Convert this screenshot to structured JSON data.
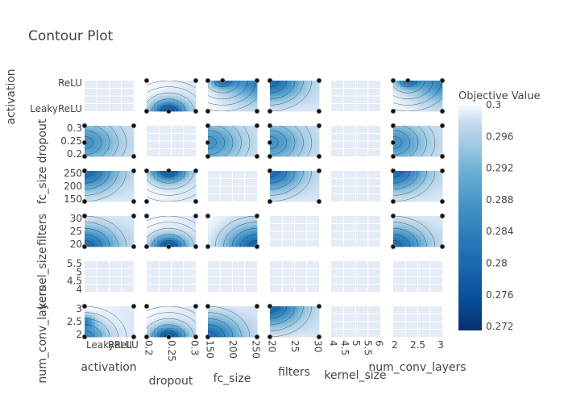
{
  "chart_data": {
    "type": "contour",
    "title": "Contour Plot",
    "params": [
      {
        "name": "activation",
        "ticks": [
          "LeakyReLU",
          "ReLU"
        ]
      },
      {
        "name": "dropout",
        "ticks": [
          "0.2",
          "0.25",
          "0.3"
        ]
      },
      {
        "name": "fc_size",
        "ticks": [
          "150",
          "200",
          "250"
        ],
        "y_ticks": [
          "150",
          "200",
          "250"
        ]
      },
      {
        "name": "filters",
        "ticks": [
          "20",
          "25",
          "30"
        ],
        "y_ticks": [
          "20",
          "25",
          "30"
        ]
      },
      {
        "name": "kernel_size",
        "ticks": [
          "4",
          "4.5",
          "5",
          "5.5",
          "6"
        ],
        "y_ticks": [
          "4",
          "4.5",
          "5",
          "5.5"
        ]
      },
      {
        "name": "num_conv_layers",
        "ticks": [
          "2",
          "2.5",
          "3"
        ]
      }
    ],
    "dropout_y_ticks": [
      "0.2",
      "0.25",
      "0.3"
    ],
    "colorbar": {
      "title": "Objective Value",
      "ticks": [
        "0.3",
        "0.296",
        "0.292",
        "0.288",
        "0.284",
        "0.28",
        "0.276",
        "0.272"
      ],
      "range": [
        0.2715,
        0.3
      ]
    },
    "legend": "right",
    "grid": true
  }
}
